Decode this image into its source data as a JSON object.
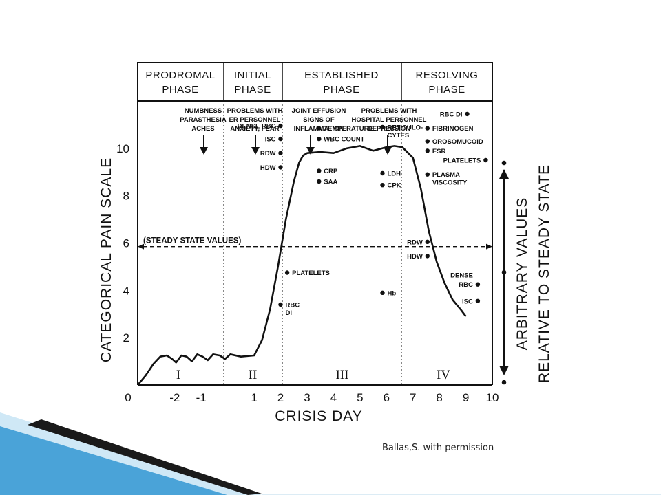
{
  "caption": "Ballas,S. with permission",
  "colors": {
    "ink": "#111111",
    "accent_blue": "#4aa3d8",
    "light_blue": "#cfe8f6",
    "dark": "#1a1a1a"
  },
  "chart_data": {
    "type": "line",
    "xlabel": "CRISIS DAY",
    "ylabel": "CATEGORICAL PAIN SCALE",
    "y2label": [
      "ARBITRARY VALUES",
      "RELATIVE TO STEADY STATE"
    ],
    "xlim": [
      -3.4,
      10
    ],
    "ylim": [
      0,
      12
    ],
    "x_tick_labels": [
      "0",
      "-2",
      "-1",
      "1",
      "2",
      "3",
      "4",
      "5",
      "6",
      "7",
      "8",
      "9",
      "10"
    ],
    "y_tick_labels": [
      "2",
      "4",
      "6",
      "8",
      "10"
    ],
    "phases": [
      {
        "line1": "PRODROMAL",
        "line2": "PHASE",
        "roman": "I"
      },
      {
        "line1": "INITIAL",
        "line2": "PHASE",
        "roman": "II"
      },
      {
        "line1": "ESTABLISHED",
        "line2": "PHASE",
        "roman": "III"
      },
      {
        "line1": "RESOLVING",
        "line2": "PHASE",
        "roman": "IV"
      }
    ],
    "notes": [
      {
        "lines": [
          "NUMBNESS",
          "PARASTHESIA",
          "ACHES"
        ]
      },
      {
        "lines": [
          "PROBLEMS WITH",
          "ER PERSONNEL",
          "ANXIETY, FEAR"
        ]
      },
      {
        "lines": [
          "JOINT EFFUSION",
          "SIGNS OF",
          "INFLAMMATION"
        ]
      },
      {
        "lines": [
          "PROBLEMS WITH",
          "HOSPITAL PERSONNEL",
          "DEPRESSION"
        ]
      }
    ],
    "steady_state_label": "(STEADY STATE VALUES)",
    "steady_state_y": 5.85,
    "pain_curve": {
      "x": [
        -3.4,
        -3.1,
        -2.8,
        -2.55,
        -2.3,
        -2.1,
        -1.95,
        -1.75,
        -1.55,
        -1.35,
        -1.15,
        -0.95,
        -0.75,
        -0.55,
        -0.3,
        -0.1,
        0.1,
        0.5,
        1.0,
        1.3,
        1.6,
        1.9,
        2.2,
        2.5,
        2.7,
        2.85,
        3.0,
        3.5,
        4.0,
        4.5,
        5.0,
        5.5,
        6.0,
        6.3,
        6.6,
        7.0,
        7.3,
        7.6,
        7.9,
        8.2,
        8.5,
        8.8,
        9.0
      ],
      "y": [
        0,
        0.4,
        0.9,
        1.2,
        1.25,
        1.1,
        0.95,
        1.25,
        1.2,
        1.0,
        1.3,
        1.2,
        1.05,
        1.3,
        1.25,
        1.1,
        1.3,
        1.2,
        1.25,
        1.9,
        3.2,
        5.0,
        7.0,
        8.6,
        9.4,
        9.7,
        9.8,
        9.85,
        9.8,
        10.0,
        10.1,
        9.9,
        10.05,
        10.1,
        10.05,
        9.6,
        8.3,
        6.5,
        5.2,
        4.3,
        3.6,
        3.2,
        2.9
      ]
    },
    "markers": [
      {
        "label": "DENSE RBC",
        "x": 2.0,
        "y": 10.95,
        "side": "left"
      },
      {
        "label": "ISC",
        "x": 2.0,
        "y": 10.4,
        "side": "left"
      },
      {
        "label": "RDW",
        "x": 2.0,
        "y": 9.8,
        "side": "left"
      },
      {
        "label": "HDW",
        "x": 2.0,
        "y": 9.2,
        "side": "left"
      },
      {
        "label": "PLATELETS",
        "x": 2.25,
        "y": 4.75,
        "side": "right"
      },
      {
        "label": "RBC",
        "x": 2.0,
        "y": 3.4,
        "side": "right",
        "label2": "DI"
      },
      {
        "label": "TEMPERATURE",
        "x": 3.45,
        "y": 10.85,
        "side": "right"
      },
      {
        "label": "WBC COUNT",
        "x": 3.45,
        "y": 10.4,
        "side": "right"
      },
      {
        "label": "CRP",
        "x": 3.45,
        "y": 9.05,
        "side": "right"
      },
      {
        "label": "SAA",
        "x": 3.45,
        "y": 8.6,
        "side": "right"
      },
      {
        "label": "RETICULO-",
        "x": 5.85,
        "y": 10.9,
        "side": "right",
        "label2": "CYTES"
      },
      {
        "label": "LDH",
        "x": 5.85,
        "y": 8.95,
        "side": "right"
      },
      {
        "label": "CPK",
        "x": 5.85,
        "y": 8.45,
        "side": "right"
      },
      {
        "label": "Hb",
        "x": 5.85,
        "y": 3.9,
        "side": "right"
      },
      {
        "label": "RBC DI",
        "x": 9.05,
        "y": 11.45,
        "side": "left"
      },
      {
        "label": "FIBRINOGEN",
        "x": 7.55,
        "y": 10.85,
        "side": "right"
      },
      {
        "label": "OROSOMUCOID",
        "x": 7.55,
        "y": 10.3,
        "side": "right"
      },
      {
        "label": "ESR",
        "x": 7.55,
        "y": 9.9,
        "side": "right"
      },
      {
        "label": "PLATELETS",
        "x": 9.75,
        "y": 9.5,
        "side": "left"
      },
      {
        "label": "PLASMA",
        "x": 7.55,
        "y": 8.9,
        "side": "right",
        "label2": "VISCOSITY"
      },
      {
        "label": "RDW",
        "x": 7.55,
        "y": 6.05,
        "side": "left"
      },
      {
        "label": "HDW",
        "x": 7.55,
        "y": 5.45,
        "side": "left"
      },
      {
        "label": "DENSE",
        "x": 9.45,
        "y": 4.25,
        "side": "left",
        "label0": "DENSE",
        "labelRBC": "RBC"
      },
      {
        "label": "ISC",
        "x": 9.45,
        "y": 3.55,
        "side": "left"
      }
    ]
  }
}
